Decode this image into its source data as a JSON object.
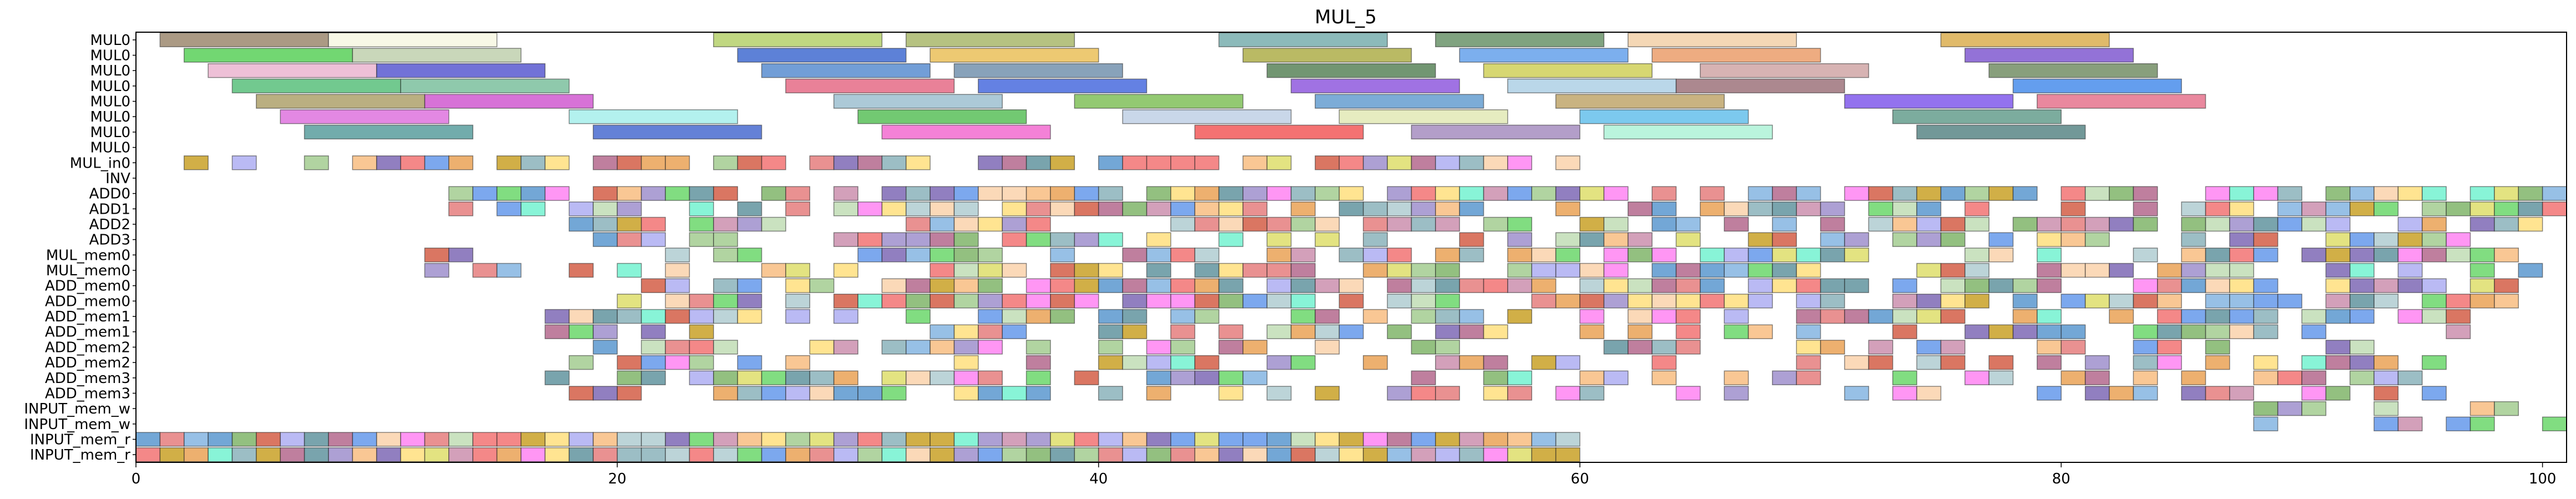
{
  "chart_data": {
    "type": "gantt",
    "title": "MUL_5",
    "xlabel": "",
    "ylabel": "",
    "xlim": [
      0,
      101
    ],
    "xticks": [
      0,
      20,
      40,
      60,
      80,
      100
    ],
    "grid": false,
    "legend": "none",
    "rows": [
      "MUL0",
      "MUL0",
      "MUL0",
      "MUL0",
      "MUL0",
      "MUL0",
      "MUL0",
      "MUL0",
      "MUL_in0",
      "INV",
      "ADD0",
      "ADD1",
      "ADD2",
      "ADD3",
      "MUL_mem0",
      "MUL_mem0",
      "ADD_mem0",
      "ADD_mem0",
      "ADD_mem1",
      "ADD_mem1",
      "ADD_mem2",
      "ADD_mem2",
      "ADD_mem3",
      "ADD_mem3",
      "INPUT_mem_w",
      "INPUT_mem_w",
      "INPUT_mem_r",
      "INPUT_mem_r"
    ],
    "long_tasks": [
      {
        "row": 0,
        "start": 1,
        "end": 8,
        "color": "#8b7355"
      },
      {
        "row": 0,
        "start": 8,
        "end": 15,
        "color": "#f5f5dc"
      },
      {
        "row": 0,
        "start": 24,
        "end": 31,
        "color": "#a8c850"
      },
      {
        "row": 0,
        "start": 32,
        "end": 39,
        "color": "#9aaa50"
      },
      {
        "row": 0,
        "start": 45,
        "end": 52,
        "color": "#5f9f9f"
      },
      {
        "row": 0,
        "start": 54,
        "end": 61,
        "color": "#4f7f4f"
      },
      {
        "row": 0,
        "start": 62,
        "end": 69,
        "color": "#f0c898"
      },
      {
        "row": 0,
        "start": 75,
        "end": 82,
        "color": "#d4a030"
      },
      {
        "row": 1,
        "start": 2,
        "end": 9,
        "color": "#3cc83c"
      },
      {
        "row": 1,
        "start": 9,
        "end": 16,
        "color": "#b4c8a0"
      },
      {
        "row": 1,
        "start": 25,
        "end": 32,
        "color": "#1e50c8"
      },
      {
        "row": 1,
        "start": 33,
        "end": 40,
        "color": "#e6b43c"
      },
      {
        "row": 1,
        "start": 46,
        "end": 53,
        "color": "#a0a028"
      },
      {
        "row": 1,
        "start": 55,
        "end": 62,
        "color": "#4a90e8"
      },
      {
        "row": 1,
        "start": 63,
        "end": 70,
        "color": "#e88c50"
      },
      {
        "row": 1,
        "start": 76,
        "end": 83,
        "color": "#6a3cc8"
      },
      {
        "row": 2,
        "start": 3,
        "end": 10,
        "color": "#e8a8c8"
      },
      {
        "row": 2,
        "start": 10,
        "end": 17,
        "color": "#3c3cc8"
      },
      {
        "row": 2,
        "start": 26,
        "end": 33,
        "color": "#3c78c8"
      },
      {
        "row": 2,
        "start": 34,
        "end": 41,
        "color": "#5a7ea0"
      },
      {
        "row": 2,
        "start": 47,
        "end": 54,
        "color": "#3c6e3c"
      },
      {
        "row": 2,
        "start": 56,
        "end": 63,
        "color": "#c8c83c"
      },
      {
        "row": 2,
        "start": 65,
        "end": 72,
        "color": "#c89696"
      },
      {
        "row": 2,
        "start": 77,
        "end": 84,
        "color": "#5a7a4a"
      },
      {
        "row": 3,
        "start": 4,
        "end": 11,
        "color": "#3cb464"
      },
      {
        "row": 3,
        "start": 11,
        "end": 18,
        "color": "#64b48c"
      },
      {
        "row": 3,
        "start": 27,
        "end": 34,
        "color": "#e05070"
      },
      {
        "row": 3,
        "start": 35,
        "end": 42,
        "color": "#2850d8"
      },
      {
        "row": 3,
        "start": 48,
        "end": 55,
        "color": "#7c3cd8"
      },
      {
        "row": 3,
        "start": 57,
        "end": 64,
        "color": "#a0c8e0"
      },
      {
        "row": 3,
        "start": 64,
        "end": 71,
        "color": "#8c5a64"
      },
      {
        "row": 3,
        "start": 78,
        "end": 85,
        "color": "#2878e8"
      },
      {
        "row": 4,
        "start": 5,
        "end": 12,
        "color": "#a09050"
      },
      {
        "row": 4,
        "start": 12,
        "end": 19,
        "color": "#c83cc8"
      },
      {
        "row": 4,
        "start": 29,
        "end": 36,
        "color": "#8cb4c8"
      },
      {
        "row": 4,
        "start": 39,
        "end": 46,
        "color": "#6ab43c"
      },
      {
        "row": 4,
        "start": 49,
        "end": 56,
        "color": "#4a8cc8"
      },
      {
        "row": 4,
        "start": 59,
        "end": 66,
        "color": "#b49650"
      },
      {
        "row": 4,
        "start": 71,
        "end": 78,
        "color": "#6a3ce8"
      },
      {
        "row": 4,
        "start": 79,
        "end": 86,
        "color": "#e05a78"
      },
      {
        "row": 5,
        "start": 6,
        "end": 13,
        "color": "#d85ad8"
      },
      {
        "row": 5,
        "start": 18,
        "end": 25,
        "color": "#96ece8"
      },
      {
        "row": 5,
        "start": 30,
        "end": 37,
        "color": "#3cb43c"
      },
      {
        "row": 5,
        "start": 41,
        "end": 48,
        "color": "#b4c8e0"
      },
      {
        "row": 5,
        "start": 50,
        "end": 57,
        "color": "#dce4a8"
      },
      {
        "row": 5,
        "start": 60,
        "end": 67,
        "color": "#4ab4e8"
      },
      {
        "row": 5,
        "start": 73,
        "end": 80,
        "color": "#4a8c78"
      },
      {
        "row": 6,
        "start": 7,
        "end": 14,
        "color": "#3c8c8c"
      },
      {
        "row": 6,
        "start": 19,
        "end": 26,
        "color": "#2850c8"
      },
      {
        "row": 6,
        "start": 31,
        "end": 38,
        "color": "#f050c8"
      },
      {
        "row": 6,
        "start": 44,
        "end": 51,
        "color": "#f03c3c"
      },
      {
        "row": 6,
        "start": 53,
        "end": 60,
        "color": "#9678b4"
      },
      {
        "row": 6,
        "start": 61,
        "end": 68,
        "color": "#a0f0d0"
      },
      {
        "row": 6,
        "start": 74,
        "end": 81,
        "color": "#3c7070"
      }
    ],
    "cell_palette": [
      "#6fa8dc",
      "#93c47d",
      "#f6b26b",
      "#8e7cc3",
      "#e06666",
      "#76a5af",
      "#c27ba0",
      "#ffd966",
      "#a2c4c9",
      "#b6d7a8",
      "#f9cb9c",
      "#4a86e8",
      "#6aa84f",
      "#e69138",
      "#674ea7",
      "#cc4125",
      "#45818e",
      "#a64d79",
      "#bf9000",
      "#3d85c6",
      "#ff6df0",
      "#5af0c8",
      "#f05a5a",
      "#a0a0f0",
      "#50d050",
      "#d8d850"
    ],
    "cell_rows": [
      {
        "row": 8,
        "start": 0,
        "end": 60,
        "density": 0.75,
        "seed": 11
      },
      {
        "row": 10,
        "start": 13,
        "end": 101,
        "density": 0.8,
        "seed": 13
      },
      {
        "row": 11,
        "start": 13,
        "end": 101,
        "density": 0.75,
        "seed": 17
      },
      {
        "row": 12,
        "start": 18,
        "end": 100,
        "density": 0.7,
        "seed": 19
      },
      {
        "row": 13,
        "start": 18,
        "end": 100,
        "density": 0.6,
        "seed": 23
      },
      {
        "row": 14,
        "start": 12,
        "end": 100,
        "density": 0.65,
        "seed": 29
      },
      {
        "row": 15,
        "start": 12,
        "end": 100,
        "density": 0.65,
        "seed": 31
      },
      {
        "row": 16,
        "start": 20,
        "end": 99,
        "density": 0.75,
        "seed": 37
      },
      {
        "row": 17,
        "start": 20,
        "end": 99,
        "density": 0.75,
        "seed": 41
      },
      {
        "row": 18,
        "start": 17,
        "end": 97,
        "density": 0.55,
        "seed": 43
      },
      {
        "row": 19,
        "start": 17,
        "end": 97,
        "density": 0.55,
        "seed": 47
      },
      {
        "row": 20,
        "start": 18,
        "end": 96,
        "density": 0.5,
        "seed": 53
      },
      {
        "row": 21,
        "start": 18,
        "end": 96,
        "density": 0.55,
        "seed": 59
      },
      {
        "row": 22,
        "start": 17,
        "end": 96,
        "density": 0.5,
        "seed": 61
      },
      {
        "row": 23,
        "start": 17,
        "end": 96,
        "density": 0.5,
        "seed": 67
      },
      {
        "row": 24,
        "start": 88,
        "end": 101,
        "density": 0.45,
        "seed": 71
      },
      {
        "row": 25,
        "start": 88,
        "end": 101,
        "density": 0.45,
        "seed": 73
      },
      {
        "row": 26,
        "start": 0,
        "end": 60,
        "density": 1.0,
        "seed": 79
      },
      {
        "row": 27,
        "start": 0,
        "end": 60,
        "density": 1.0,
        "seed": 83
      }
    ]
  }
}
